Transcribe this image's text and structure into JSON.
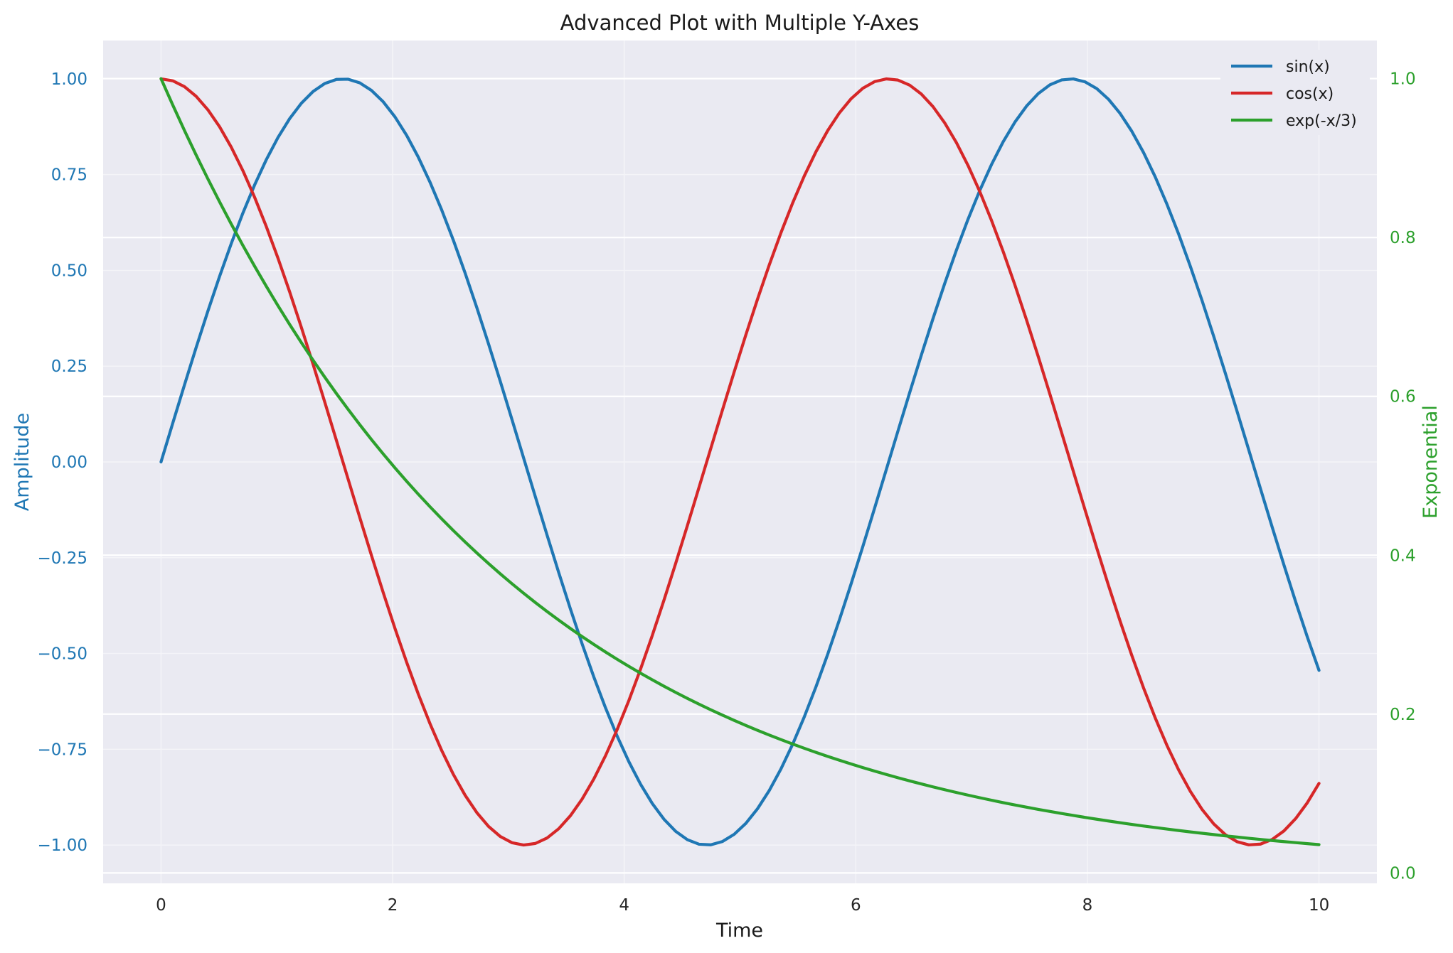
{
  "chart_data": {
    "type": "line",
    "title": "Advanced Plot with Multiple Y-Axes",
    "xlabel": "Time",
    "ylabel_left": "Amplitude",
    "ylabel_right": "Exponential",
    "xlim": [
      -0.5,
      10.5
    ],
    "ylim_left": [
      -1.1,
      1.1
    ],
    "ylim_right": [
      -0.0131,
      1.048
    ],
    "x_ticks": [
      "0",
      "2",
      "4",
      "6",
      "8",
      "10"
    ],
    "y_left_ticks": [
      "1.00",
      "0.75",
      "0.50",
      "0.25",
      "0.00",
      "−0.25",
      "−0.50",
      "−0.75",
      "−1.00"
    ],
    "y_right_ticks": [
      "1.0",
      "0.8",
      "0.6",
      "0.4",
      "0.2",
      "0.0"
    ],
    "grid": true,
    "legend_position": "top-right",
    "colors": {
      "background": "#eaeaf2",
      "grid": "#ffffff",
      "left_axis": "#1f77b4",
      "right_axis": "#2ca02c"
    },
    "series": [
      {
        "name": "sin(x)",
        "axis": "left",
        "color": "#1f77b4",
        "x": [
          0,
          0.5,
          1,
          1.5,
          2,
          2.5,
          3,
          3.5,
          4,
          4.5,
          5,
          5.5,
          6,
          6.5,
          7,
          7.5,
          8,
          8.5,
          9,
          9.5,
          10
        ],
        "y": [
          0.0,
          0.479,
          0.841,
          0.997,
          0.909,
          0.598,
          0.141,
          -0.351,
          -0.757,
          -0.978,
          -0.959,
          -0.706,
          -0.279,
          0.215,
          0.657,
          0.938,
          0.989,
          0.798,
          0.412,
          -0.075,
          -0.544
        ]
      },
      {
        "name": "cos(x)",
        "axis": "left",
        "color": "#d62728",
        "x": [
          0,
          0.5,
          1,
          1.5,
          2,
          2.5,
          3,
          3.5,
          4,
          4.5,
          5,
          5.5,
          6,
          6.5,
          7,
          7.5,
          8,
          8.5,
          9,
          9.5,
          10
        ],
        "y": [
          1.0,
          0.878,
          0.54,
          0.071,
          -0.416,
          -0.801,
          -0.99,
          -0.936,
          -0.654,
          -0.211,
          0.284,
          0.709,
          0.96,
          0.977,
          0.754,
          0.347,
          -0.146,
          -0.602,
          -0.911,
          -0.997,
          -0.839
        ]
      },
      {
        "name": "exp(-x/3)",
        "axis": "right",
        "color": "#2ca02c",
        "x": [
          0,
          0.5,
          1,
          1.5,
          2,
          2.5,
          3,
          3.5,
          4,
          4.5,
          5,
          5.5,
          6,
          6.5,
          7,
          7.5,
          8,
          8.5,
          9,
          9.5,
          10
        ],
        "y": [
          1.0,
          0.846,
          0.717,
          0.607,
          0.513,
          0.435,
          0.368,
          0.311,
          0.264,
          0.223,
          0.189,
          0.16,
          0.135,
          0.115,
          0.097,
          0.082,
          0.069,
          0.059,
          0.05,
          0.042,
          0.036
        ]
      }
    ]
  }
}
